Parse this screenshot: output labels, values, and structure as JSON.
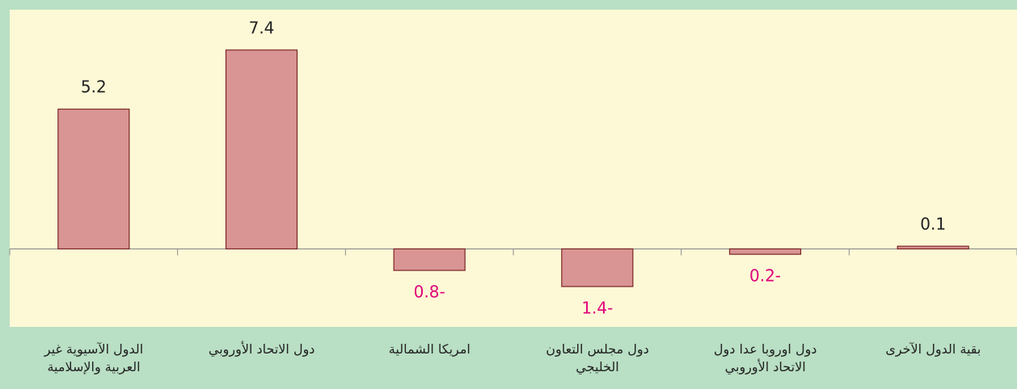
{
  "chart_data": {
    "type": "bar",
    "categories": [
      "الدول الآسيوية غير\nالعربية والإسلامية",
      "دول الاتحاد الأوروبي",
      "امريكا الشمالية",
      "دول مجلس التعاون\nالخليجي",
      "دول اوروبا عدا دول\nالاتحاد الأوروبي",
      "بقية الدول الآخرى"
    ],
    "values": [
      5.2,
      7.4,
      -0.8,
      -1.4,
      -0.2,
      0.1
    ],
    "value_labels": [
      "5.2",
      "7.4",
      "0.8-",
      "1.4-",
      "0.2-",
      "0.1"
    ],
    "color": "#d99594",
    "edge_color": "#7a2424",
    "label_color": "#222222",
    "negative_label_color": "#e0007a",
    "ylim": [
      -2.9,
      8.9
    ]
  }
}
